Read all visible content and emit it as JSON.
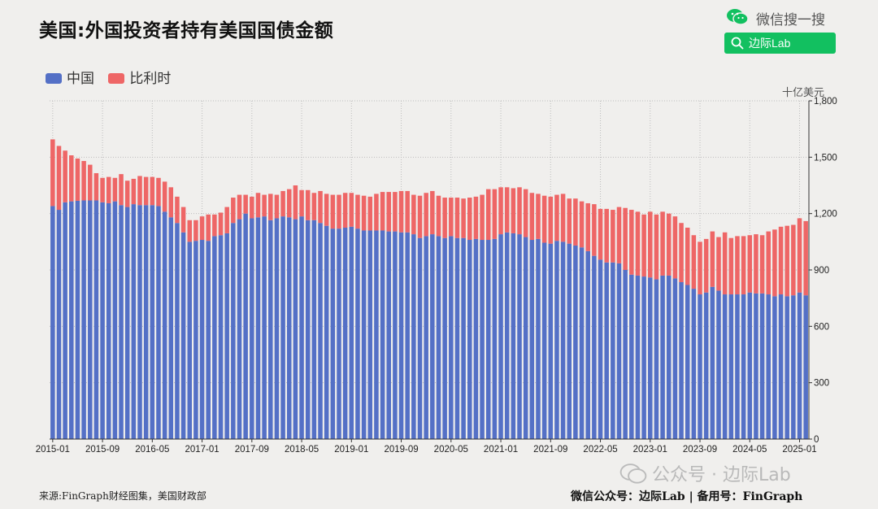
{
  "header": {
    "title": "美国:外国投资者持有美国国债金额",
    "wechat_label": "微信搜一搜",
    "search_button_label": "边际Lab",
    "brand_color": "#12c060"
  },
  "footer": {
    "source": "来源:FinGraph财经图集，美国财政部",
    "right": "微信公众号：边际Lab  |  备用号：FinGraph",
    "watermark": "公众号 · 边际Lab"
  },
  "chart_data": {
    "type": "bar",
    "stacked": true,
    "title": "美国:外国投资者持有美国国债金额",
    "unit": "十亿美元",
    "y_axis_side": "right",
    "ylim": [
      0,
      1800
    ],
    "yticks": [
      0,
      300,
      600,
      900,
      "1,200",
      "1,500",
      "1,800"
    ],
    "xticks": [
      "2015-01",
      "2015-09",
      "2016-05",
      "2017-01",
      "2017-09",
      "2018-05",
      "2019-01",
      "2019-09",
      "2020-05",
      "2021-01",
      "2021-09",
      "2022-05",
      "2023-01",
      "2023-09",
      "2024-05",
      "2025-01"
    ],
    "grid": true,
    "legend_position": "top-left",
    "series": [
      {
        "name": "中国",
        "color": "#5470c6",
        "values": [
          1240,
          1220,
          1260,
          1265,
          1268,
          1270,
          1270,
          1270,
          1260,
          1255,
          1265,
          1245,
          1235,
          1250,
          1245,
          1245,
          1245,
          1240,
          1210,
          1180,
          1150,
          1100,
          1050,
          1055,
          1060,
          1055,
          1080,
          1085,
          1095,
          1150,
          1170,
          1200,
          1175,
          1180,
          1185,
          1165,
          1175,
          1185,
          1180,
          1170,
          1185,
          1165,
          1165,
          1150,
          1135,
          1120,
          1120,
          1125,
          1130,
          1120,
          1110,
          1110,
          1110,
          1110,
          1105,
          1105,
          1100,
          1100,
          1090,
          1070,
          1080,
          1090,
          1080,
          1070,
          1080,
          1070,
          1070,
          1060,
          1065,
          1060,
          1060,
          1065,
          1090,
          1100,
          1095,
          1090,
          1075,
          1060,
          1065,
          1045,
          1040,
          1055,
          1050,
          1040,
          1030,
          1020,
          1000,
          975,
          955,
          940,
          940,
          935,
          900,
          875,
          870,
          865,
          860,
          850,
          870,
          870,
          855,
          835,
          820,
          800,
          770,
          780,
          810,
          790,
          770,
          770,
          770,
          770,
          780,
          775,
          775,
          770,
          760,
          770,
          760,
          765,
          780,
          765
        ],
        "values_note": ""
      },
      {
        "name": "比利时",
        "color": "#ee6666",
        "values": [
          355,
          340,
          275,
          245,
          225,
          210,
          190,
          145,
          130,
          140,
          125,
          165,
          140,
          135,
          155,
          150,
          150,
          150,
          160,
          160,
          140,
          135,
          115,
          110,
          125,
          140,
          115,
          120,
          140,
          135,
          130,
          100,
          115,
          130,
          115,
          140,
          125,
          135,
          150,
          180,
          140,
          160,
          145,
          170,
          170,
          180,
          180,
          185,
          180,
          180,
          185,
          180,
          195,
          205,
          210,
          210,
          220,
          220,
          210,
          225,
          230,
          230,
          215,
          215,
          205,
          215,
          210,
          225,
          225,
          240,
          270,
          265,
          250,
          240,
          240,
          250,
          255,
          250,
          240,
          250,
          250,
          245,
          255,
          240,
          250,
          245,
          255,
          275,
          270,
          285,
          280,
          300,
          330,
          345,
          340,
          330,
          350,
          345,
          340,
          330,
          330,
          315,
          305,
          285,
          280,
          285,
          295,
          285,
          330,
          300,
          310,
          310,
          305,
          315,
          310,
          335,
          355,
          360,
          375,
          375,
          395,
          395
        ]
      }
    ]
  }
}
